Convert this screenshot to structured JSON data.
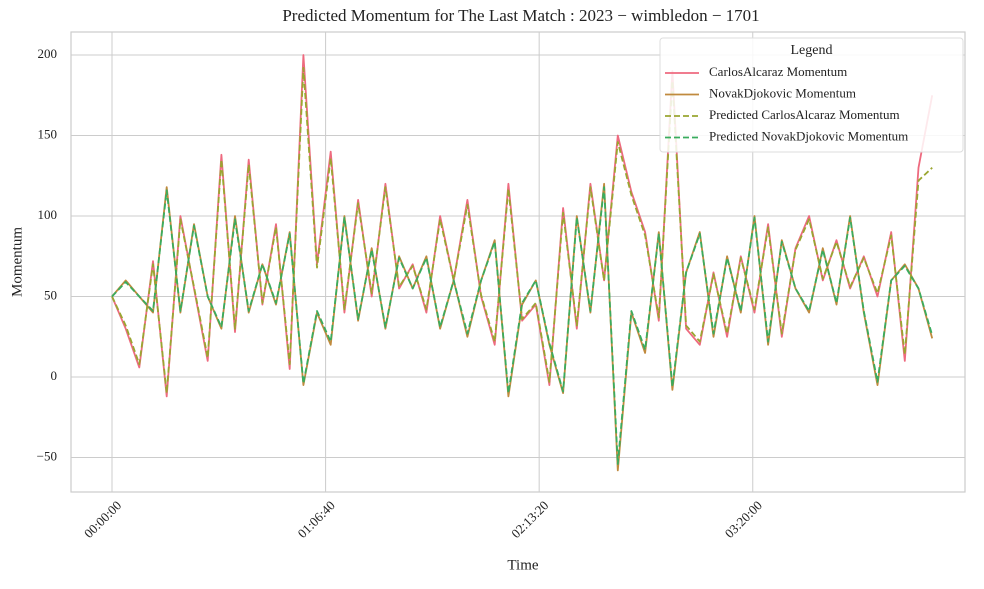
{
  "chart_data": {
    "type": "line",
    "title": "Predicted Momentum  for The Last Match : 2023 − wimbledon − 1701",
    "x_label": "Time",
    "y_label": "Momentum",
    "legend_title": "Legend",
    "legend": "upper right",
    "grid": true,
    "x": [
      0,
      256,
      512,
      768,
      1024,
      1280,
      1536,
      1792,
      2048,
      2304,
      2560,
      2816,
      3072,
      3328,
      3584,
      3840,
      4096,
      4352,
      4608,
      4864,
      5120,
      5376,
      5632,
      5888,
      6144,
      6400,
      6656,
      6912,
      7168,
      7424,
      7680,
      7936,
      8192,
      8448,
      8704,
      8960,
      9216,
      9472,
      9728,
      9984,
      10240,
      10496,
      10752,
      11008,
      11264,
      11520,
      11776,
      12032,
      12288,
      12544,
      12800,
      13056,
      13312,
      13568,
      13824,
      14080,
      14336,
      14592,
      14848,
      15104,
      15360
    ],
    "xlim": [
      -768,
      15975
    ],
    "xticks": [
      {
        "value": 0,
        "label": "00:00:00"
      },
      {
        "value": 4000,
        "label": "01:06:40"
      },
      {
        "value": 8000,
        "label": "02:13:20"
      },
      {
        "value": 12000,
        "label": "03:20:00"
      }
    ],
    "ylim": [
      -71.4,
      214.3
    ],
    "yticks": [
      {
        "value": -50,
        "label": "−50"
      },
      0,
      50,
      100,
      150,
      200
    ],
    "series": [
      {
        "name": "CarlosAlcaraz Momentum",
        "color": "#ee6a7f",
        "linestyle": "solid",
        "values": [
          50,
          30,
          6,
          72,
          -12,
          100,
          55,
          10,
          138,
          28,
          135,
          45,
          95,
          5,
          200,
          70,
          140,
          40,
          110,
          50,
          120,
          55,
          70,
          40,
          100,
          60,
          110,
          50,
          20,
          120,
          35,
          45,
          -5,
          105,
          30,
          120,
          60,
          150,
          115,
          90,
          35,
          190,
          30,
          20,
          65,
          25,
          75,
          40,
          95,
          25,
          80,
          100,
          60,
          85,
          55,
          75,
          50,
          90,
          10,
          130,
          175
        ]
      },
      {
        "name": "NovakDjokovic Momentum",
        "color": "#c08a3e",
        "linestyle": "solid",
        "values": [
          50,
          60,
          50,
          40,
          118,
          40,
          95,
          50,
          30,
          100,
          40,
          70,
          45,
          90,
          -5,
          40,
          20,
          100,
          35,
          80,
          30,
          75,
          55,
          75,
          30,
          60,
          25,
          60,
          85,
          -12,
          45,
          60,
          20,
          -10,
          100,
          40,
          120,
          -58,
          40,
          15,
          90,
          -8,
          65,
          90,
          25,
          75,
          40,
          100,
          20,
          85,
          55,
          40,
          80,
          45,
          100,
          40,
          -5,
          60,
          70,
          55,
          24
        ]
      },
      {
        "name": "Predicted CarlosAlcaraz Momentum",
        "color": "#9aa631",
        "linestyle": "dashed",
        "values": [
          50,
          32,
          8,
          70,
          -10,
          98,
          56,
          12,
          135,
          30,
          132,
          46,
          93,
          8,
          192,
          68,
          136,
          42,
          108,
          52,
          118,
          56,
          69,
          42,
          98,
          60,
          107,
          51,
          22,
          117,
          36,
          46,
          -3,
          102,
          32,
          118,
          60,
          146,
          113,
          88,
          37,
          184,
          32,
          22,
          64,
          27,
          74,
          42,
          93,
          27,
          79,
          98,
          61,
          84,
          56,
          74,
          52,
          88,
          14,
          122,
          130
        ]
      },
      {
        "name": "Predicted NovakDjokovic Momentum",
        "color": "#3aac5e",
        "linestyle": "dashed",
        "values": [
          50,
          59,
          50,
          41,
          116,
          41,
          94,
          50,
          31,
          98,
          41,
          70,
          46,
          89,
          -4,
          41,
          22,
          99,
          36,
          79,
          31,
          74,
          55,
          74,
          31,
          60,
          27,
          60,
          84,
          -10,
          46,
          60,
          21,
          -9,
          99,
          41,
          118,
          -54,
          41,
          17,
          89,
          -6,
          65,
          89,
          27,
          74,
          41,
          99,
          22,
          84,
          55,
          41,
          79,
          46,
          99,
          41,
          -3,
          60,
          69,
          55,
          26
        ]
      }
    ]
  }
}
